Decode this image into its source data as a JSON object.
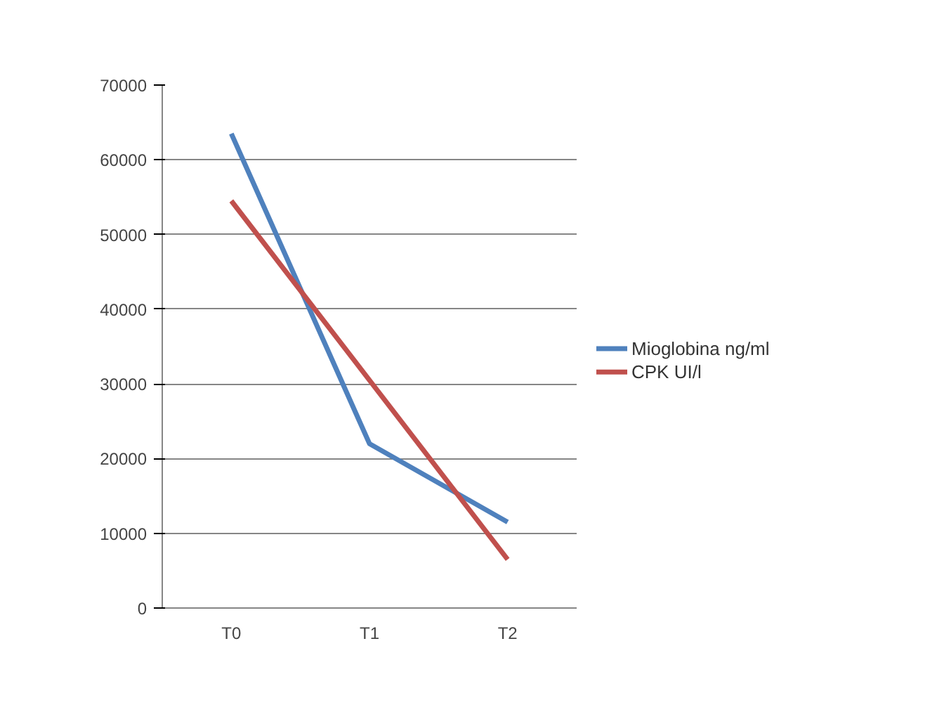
{
  "chart_data": {
    "type": "line",
    "categories": [
      "T0",
      "T1",
      "T2"
    ],
    "series": [
      {
        "name": "Mioglobina ng/ml",
        "color": "#4f81bd",
        "values": [
          63500,
          22000,
          11500
        ]
      },
      {
        "name": "CPK UI/l",
        "color": "#c0504d",
        "values": [
          54500,
          30500,
          6500
        ]
      }
    ],
    "ylim": [
      0,
      70000
    ],
    "yticks": [
      0,
      10000,
      20000,
      30000,
      40000,
      50000,
      60000,
      70000
    ],
    "grid": "y",
    "legend": "right",
    "marker": "none",
    "line_style": "solid"
  }
}
